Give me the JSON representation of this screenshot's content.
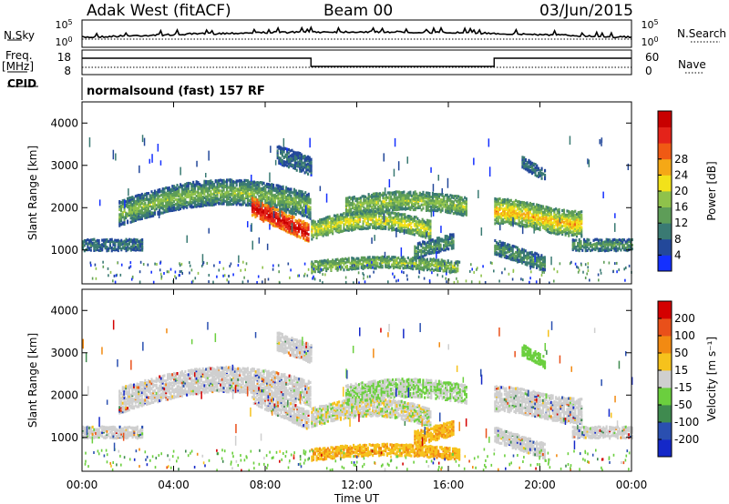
{
  "header": {
    "radar": "Adak West (fitACF)",
    "beam": "Beam 00",
    "date": "03/Jun/2015"
  },
  "left_labels": {
    "nsky": "N.Sky",
    "freq": "Freq.",
    "freq_unit": "[MHz]",
    "cpid": "CPID"
  },
  "right_labels": {
    "nsearch": "N.Search",
    "nave": "Nave"
  },
  "noise_panel": {
    "left_ticks": [
      "10^5",
      "10^0"
    ],
    "right_ticks": [
      "10^5",
      "10^0"
    ]
  },
  "freq_panel": {
    "left_ticks": [
      "18",
      "8"
    ],
    "right_ticks": [
      "60",
      "0"
    ]
  },
  "cpid_text": "normalsound (fast) 157 RF",
  "chart_data": [
    {
      "type": "heatmap",
      "title": "",
      "ylabel": "Slant Range [km]",
      "xlabel": "",
      "x_ticks": [
        "00:00",
        "04:00",
        "08:00",
        "12:00",
        "16:00",
        "20:00",
        "00:00"
      ],
      "y_ticks": [
        1000,
        2000,
        3000,
        4000
      ],
      "ylim": [
        200,
        4500
      ],
      "colorbar": {
        "label": "Power [dB]",
        "ticks": [
          4,
          8,
          12,
          16,
          20,
          24,
          28
        ],
        "colors": [
          "#1430ff",
          "#23489a",
          "#3a7a73",
          "#5e9d58",
          "#8fc24b",
          "#f2e21a",
          "#f5a816",
          "#f05a14",
          "#e4231a",
          "#c80000"
        ]
      }
    },
    {
      "type": "heatmap",
      "title": "",
      "ylabel": "Slant Range [km]",
      "xlabel": "Time UT",
      "x_ticks": [
        "00:00",
        "04:00",
        "08:00",
        "12:00",
        "16:00",
        "20:00",
        "00:00"
      ],
      "y_ticks": [
        1000,
        2000,
        3000,
        4000
      ],
      "ylim": [
        200,
        4500
      ],
      "colorbar": {
        "label": "Velocity [m s^-1]",
        "ticks": [
          200,
          100,
          50,
          15,
          -15,
          -50,
          -100,
          -200
        ],
        "colors": [
          "#1428c8",
          "#2a4fb0",
          "#3f8a4f",
          "#6bcf3e",
          "#cfcfcf",
          "#f6c21c",
          "#f28a12",
          "#e9501a",
          "#d40000"
        ]
      }
    }
  ],
  "colors": {
    "ground_scatter": "#c8c8c8",
    "axis": "#000000"
  }
}
